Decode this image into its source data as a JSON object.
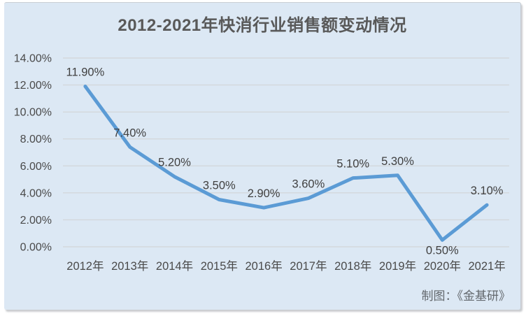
{
  "window": {
    "background": "#ffffff"
  },
  "card": {
    "background": "#dce8f4"
  },
  "header": {
    "title": "2012-2021年快消行业销售额变动情况"
  },
  "footer": {
    "credit": "制图：《金基研》"
  },
  "chart_data": {
    "type": "line",
    "title": "2012-2021年快消行业销售额变动情况",
    "categories": [
      "2012年",
      "2013年",
      "2014年",
      "2015年",
      "2016年",
      "2017年",
      "2018年",
      "2019年",
      "2020年",
      "2021年"
    ],
    "series": [
      {
        "name": "快消行业销售额变动",
        "values": [
          11.9,
          7.4,
          5.2,
          3.5,
          2.9,
          3.6,
          5.1,
          5.3,
          0.5,
          3.1
        ],
        "labels": [
          "11.90%",
          "7.40%",
          "5.20%",
          "3.50%",
          "2.90%",
          "3.60%",
          "5.10%",
          "5.30%",
          "0.50%",
          "3.10%"
        ]
      }
    ],
    "xlabel": "",
    "ylabel": "",
    "ylim": [
      0,
      14
    ],
    "ytick_step": 2,
    "ytick_labels": [
      "0.00%",
      "2.00%",
      "4.00%",
      "6.00%",
      "8.00%",
      "10.00%",
      "12.00%",
      "14.00%"
    ],
    "grid": true,
    "legend": "none",
    "line_color": "#5b9bd5",
    "line_width": 5,
    "gridline_color": "#d3d7db",
    "label_color": "#404040",
    "axis_text_color": "#4a4a4a",
    "below_label_indices": [
      8
    ]
  }
}
